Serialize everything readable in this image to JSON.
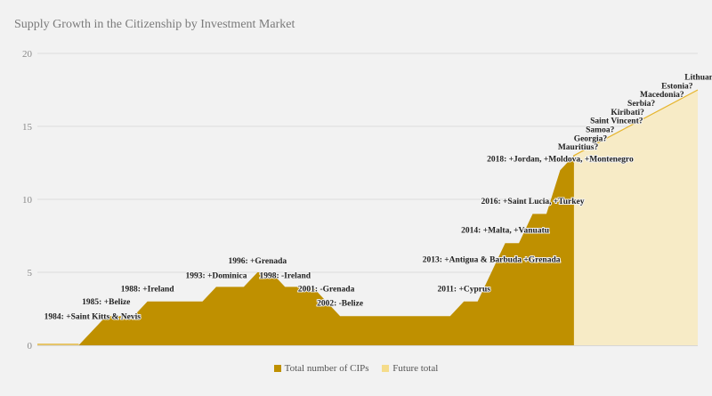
{
  "chart_data": {
    "type": "area",
    "title": "Supply Growth in the Citizenship by Investment Market",
    "xlabel": "",
    "ylabel": "",
    "xlim": [
      1980,
      2028
    ],
    "ylim": [
      0,
      20
    ],
    "yticks": [
      0,
      5,
      10,
      15,
      20
    ],
    "grid": true,
    "legend_position": "bottom",
    "series": [
      {
        "name": "Total number of CIPs",
        "color": "#bf9000",
        "x": [
          1980,
          1983,
          1984,
          1985,
          1987,
          1988,
          1992,
          1993,
          1995,
          1996,
          1997,
          1998,
          2000,
          2001,
          2002,
          2010,
          2011,
          2012,
          2013,
          2014,
          2015,
          2016,
          2017,
          2018,
          2019
        ],
        "values": [
          0,
          0,
          1,
          2,
          2,
          3,
          3,
          4,
          4,
          5,
          5,
          4,
          4,
          3,
          2,
          2,
          3,
          3,
          5,
          7,
          7,
          9,
          9,
          12,
          13
        ]
      },
      {
        "name": "Future total",
        "color": "#f7ebc6",
        "line_color": "#e6b52e",
        "x": [
          2018,
          2019,
          2028
        ],
        "values": [
          0,
          13,
          17.5
        ]
      }
    ],
    "annotations": [
      {
        "text": "1984: +Saint Kitts & Nevis",
        "year": 1984,
        "value": 1.8
      },
      {
        "text": "1985: +Belize",
        "year": 1985,
        "value": 2.8
      },
      {
        "text": "1988: +Ireland",
        "year": 1988,
        "value": 3.7
      },
      {
        "text": "1993: +Dominica",
        "year": 1993,
        "value": 4.6
      },
      {
        "text": "1996: +Grenada",
        "year": 1996,
        "value": 5.6
      },
      {
        "text": "1998: -Ireland",
        "year": 1998,
        "value": 4.6
      },
      {
        "text": "2001: -Grenada",
        "year": 2001,
        "value": 3.7
      },
      {
        "text": "2002: -Belize",
        "year": 2002,
        "value": 2.7
      },
      {
        "text": "2011: +Cyprus",
        "year": 2011,
        "value": 3.7
      },
      {
        "text": "2013: +Antigua & Barbuda +Grenada",
        "year": 2013,
        "value": 5.7
      },
      {
        "text": "2014: +Malta, +Vanuatu",
        "year": 2014,
        "value": 7.7
      },
      {
        "text": "2016: +Saint Lucia, +Turkey",
        "year": 2016,
        "value": 9.7
      },
      {
        "text": "2018: +Jordan, +Moldova, +Montenegro",
        "year": 2018,
        "value": 12.6
      },
      {
        "text": "Mauritius?",
        "year": 2019.3,
        "value": 13.4
      },
      {
        "text": "Georgia?",
        "year": 2020.2,
        "value": 14
      },
      {
        "text": "Samoa?",
        "year": 2020.9,
        "value": 14.6
      },
      {
        "text": "Saint Vincent?",
        "year": 2022.1,
        "value": 15.2
      },
      {
        "text": "Kiribati?",
        "year": 2022.9,
        "value": 15.8
      },
      {
        "text": "Serbia?",
        "year": 2023.9,
        "value": 16.4
      },
      {
        "text": "Macedonia?",
        "year": 2025.4,
        "value": 17
      },
      {
        "text": "Estonia?",
        "year": 2026.5,
        "value": 17.6
      },
      {
        "text": "Lithuania?",
        "year": 2028.5,
        "value": 18.2
      }
    ]
  }
}
